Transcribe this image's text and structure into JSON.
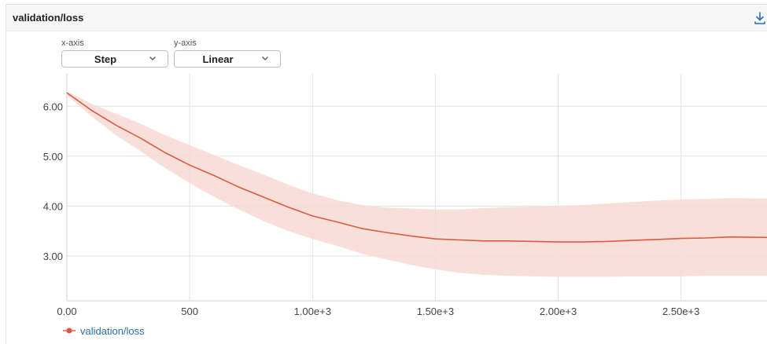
{
  "panel": {
    "title": "validation/loss"
  },
  "controls": {
    "x_axis": {
      "label": "x-axis",
      "value": "Step"
    },
    "y_axis": {
      "label": "y-axis",
      "value": "Linear"
    }
  },
  "icons": {
    "download": "download-icon",
    "chevron": "chevron-down-icon"
  },
  "colors": {
    "series": "#d95a45",
    "band": "#f7d9d3",
    "legend_text": "#2a6fb0"
  },
  "chart_data": {
    "type": "line",
    "xlabel": "",
    "ylabel": "",
    "xlim": [
      0,
      2850
    ],
    "ylim": [
      2.1,
      6.65
    ],
    "grid": true,
    "legend": "bottom-left",
    "x_ticks": [
      0,
      500,
      1000,
      1500,
      2000,
      2500
    ],
    "x_tick_labels": [
      "0.00",
      "500",
      "1.00e+3",
      "1.50e+3",
      "2.00e+3",
      "2.50e+3"
    ],
    "y_ticks": [
      3,
      4,
      5,
      6
    ],
    "y_tick_labels": [
      "3.00",
      "4.00",
      "5.00",
      "6.00"
    ],
    "series": [
      {
        "name": "validation/loss",
        "x": [
          0,
          100,
          200,
          300,
          400,
          500,
          600,
          700,
          800,
          900,
          1000,
          1100,
          1200,
          1300,
          1400,
          1500,
          1600,
          1700,
          1800,
          1900,
          2000,
          2100,
          2200,
          2300,
          2400,
          2500,
          2600,
          2700,
          2850
        ],
        "y": [
          6.27,
          5.92,
          5.62,
          5.36,
          5.07,
          4.82,
          4.61,
          4.38,
          4.18,
          3.98,
          3.8,
          3.68,
          3.55,
          3.47,
          3.4,
          3.34,
          3.32,
          3.3,
          3.3,
          3.29,
          3.28,
          3.28,
          3.29,
          3.31,
          3.33,
          3.35,
          3.36,
          3.38,
          3.37
        ],
        "upper": [
          6.3,
          6.05,
          5.85,
          5.65,
          5.42,
          5.22,
          5.02,
          4.82,
          4.63,
          4.43,
          4.25,
          4.12,
          4.02,
          3.97,
          3.95,
          3.93,
          3.93,
          3.96,
          3.98,
          3.99,
          4.0,
          4.02,
          4.05,
          4.08,
          4.11,
          4.13,
          4.14,
          4.16,
          4.15
        ],
        "lower": [
          6.22,
          5.8,
          5.42,
          5.1,
          4.76,
          4.46,
          4.18,
          3.93,
          3.7,
          3.5,
          3.34,
          3.2,
          3.05,
          2.93,
          2.82,
          2.73,
          2.66,
          2.62,
          2.6,
          2.59,
          2.58,
          2.58,
          2.58,
          2.59,
          2.59,
          2.59,
          2.6,
          2.6,
          2.6
        ]
      }
    ]
  }
}
